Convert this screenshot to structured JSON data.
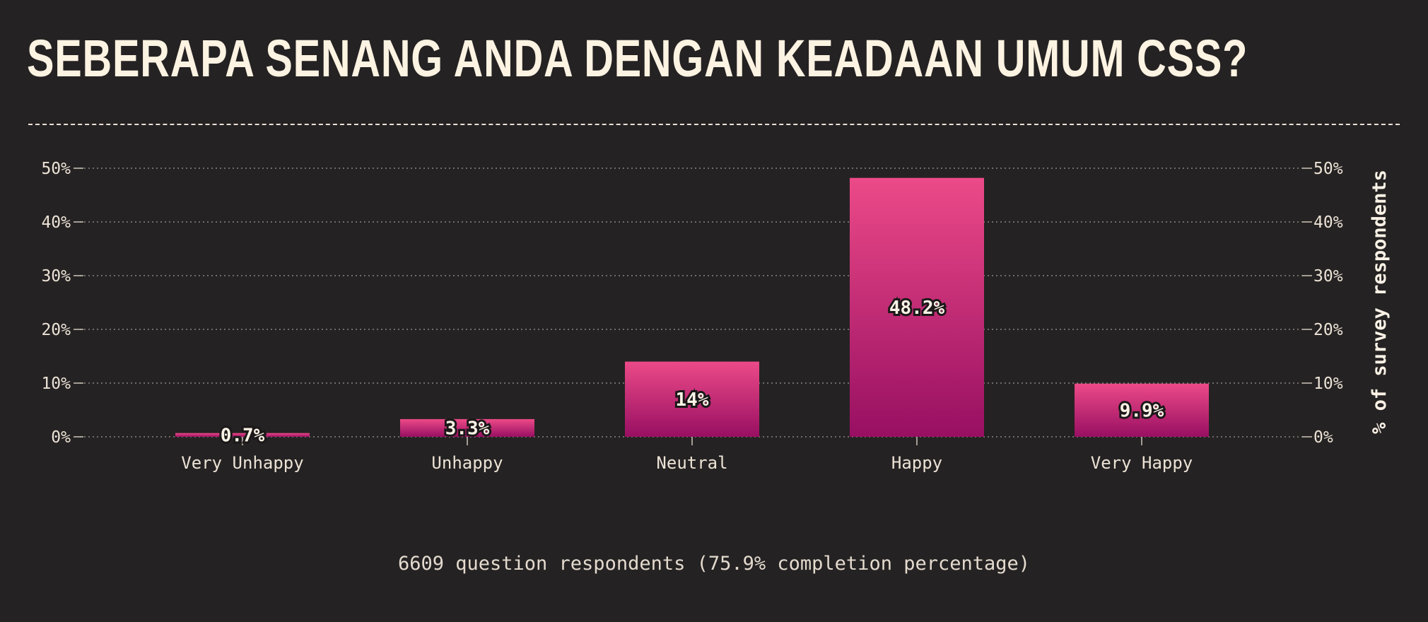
{
  "title": "SEBERAPA SENANG ANDA DENGAN KEADAAN UMUM CSS?",
  "footnote": "6609 question respondents (75.9% completion percentage)",
  "colors": {
    "background": "#252223",
    "bar_top": "#ec4a88",
    "bar_bottom": "#980f62",
    "text": "#fdf3e2"
  },
  "chart_data": {
    "type": "bar",
    "categories": [
      "Very Unhappy",
      "Unhappy",
      "Neutral",
      "Happy",
      "Very Happy"
    ],
    "values": [
      0.7,
      3.3,
      14,
      48.2,
      9.9
    ],
    "value_labels": [
      "0.7%",
      "3.3%",
      "14%",
      "48.2%",
      "9.9%"
    ],
    "ylabel": "% of survey respondents",
    "ylim": [
      0,
      50
    ],
    "yticks": [
      0,
      10,
      20,
      30,
      40,
      50
    ],
    "ytick_labels": [
      "0%",
      "10%",
      "20%",
      "30%",
      "40%",
      "50%"
    ],
    "grid": true,
    "axis_label_position": "right"
  }
}
